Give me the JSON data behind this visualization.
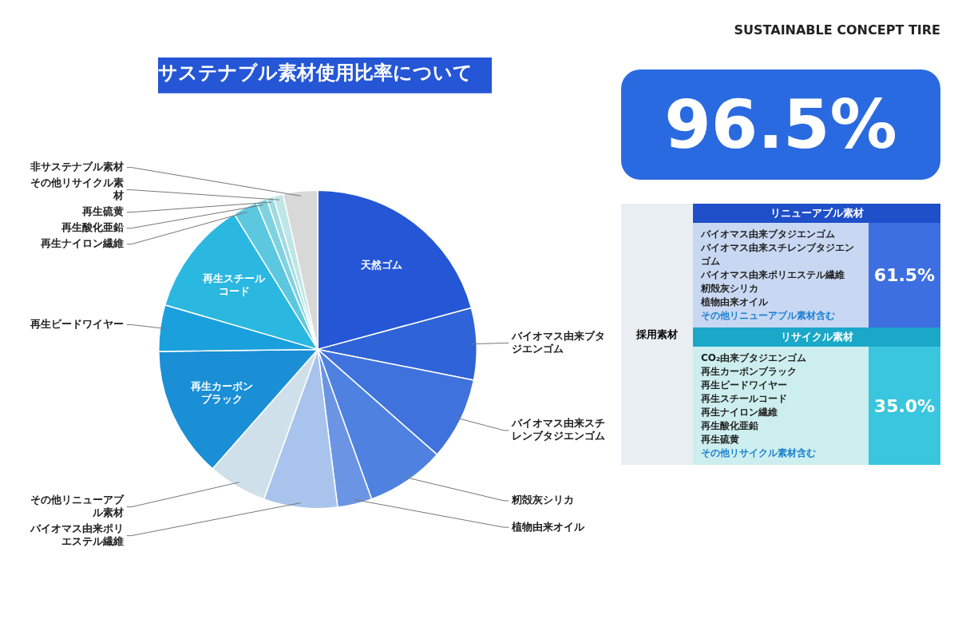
{
  "chart_data": {
    "type": "pie",
    "title": "サステナブル素材使用比率について",
    "subtitle": "SUSTAINABLE CONCEPT TIRE",
    "categories": [
      "天然ゴム",
      "バイオマス由来ブタジエンゴム",
      "バイオマス由来スチレンブタジエンゴム",
      "籾殻灰シリカ",
      "植物由来オイル",
      "バイオマス由来ポリエステル繊維",
      "その他リニューアブル素材",
      "再生カーボンブラック",
      "再生ビードワイヤー",
      "再生スチールコード",
      "再生ナイロン繊維",
      "再生酸化亜鉛",
      "再生硫黄",
      "その他リサイクル素材",
      "非サステナブル素材"
    ],
    "values": [
      20.8,
      7.3,
      8.4,
      8.0,
      3.5,
      7.5,
      6.0,
      13.3,
      4.7,
      11.7,
      2.5,
      1.1,
      0.7,
      1.0,
      3.5
    ],
    "colors": [
      "#2456d6",
      "#2f63d8",
      "#3f72dc",
      "#4f82e0",
      "#6b95e4",
      "#a9c4ec",
      "#cfe0ea",
      "#1a8fd6",
      "#1aa0dc",
      "#2bb8e0",
      "#5cc8e0",
      "#7fd3e0",
      "#9fdbe2",
      "#bfe6e6",
      "#d8d8d8"
    ],
    "legend": false,
    "annotations": [
      "96.5%",
      "採用素材",
      "リニューアブル素材",
      "バイオマス由来ブタジエンゴム",
      "バイオマス由来スチレンブタジエンゴム",
      "バイオマス由来ポリエステル繊維",
      "籾殻灰シリカ",
      "植物由来オイル",
      "その他リニューアブル素材含む",
      "61.5%",
      "リサイクル素材",
      "CO₂由来ブタジエンゴム",
      "再生カーボンブラック",
      "再生ビードワイヤー",
      "再生スチールコード",
      "再生ナイロン繊維",
      "再生酸化亜鉛",
      "再生硫黄",
      "その他リサイクル素材含む",
      "35.0%"
    ]
  }
}
